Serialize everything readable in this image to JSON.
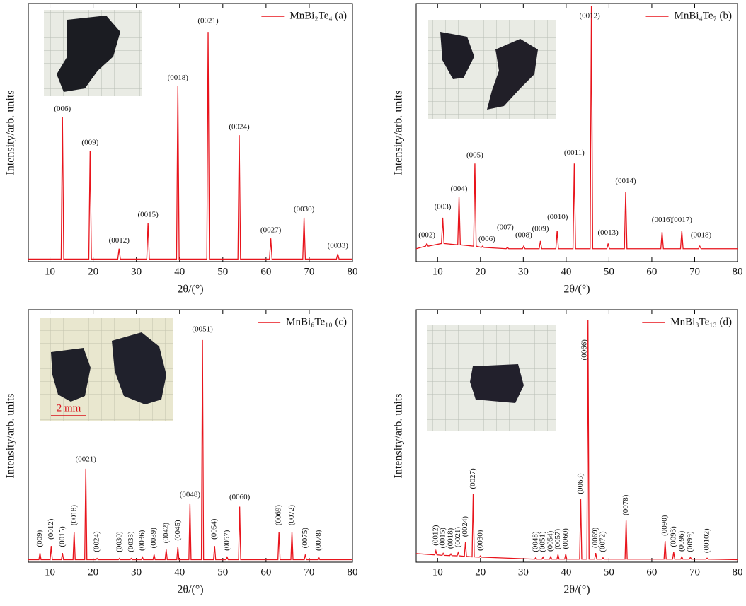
{
  "chart_data": [
    {
      "type": "line",
      "xlabel": "2θ/(°)",
      "ylabel": "Intensity/arb. units",
      "xlim": [
        5,
        80
      ],
      "xticks": [
        10,
        20,
        30,
        40,
        50,
        60,
        70,
        80
      ],
      "ylim": [
        0,
        100
      ],
      "legend": "upper right",
      "x": [
        5,
        12.6,
        12.9,
        13.2,
        19.0,
        19.3,
        19.6,
        25.7,
        26.0,
        26.3,
        32.4,
        32.7,
        33.0,
        39.3,
        39.6,
        39.9,
        46.3,
        46.6,
        46.9,
        53.5,
        53.8,
        54.1,
        60.8,
        61.1,
        61.4,
        68.5,
        68.8,
        69.1,
        76.3,
        76.6,
        76.9,
        80
      ],
      "series": [
        {
          "name": "MnBi₂Te₄ (a)",
          "color": "#e8141c",
          "values": [
            1,
            1,
            56,
            1,
            1,
            43,
            1,
            1,
            5,
            1,
            1,
            15,
            1,
            1,
            68,
            1,
            1,
            89,
            1,
            1,
            49,
            1,
            1,
            9,
            1,
            1,
            17,
            1,
            1,
            3,
            1,
            1
          ]
        }
      ],
      "annotations": [
        {
          "text": "(006)",
          "x": 12.9,
          "y": 58
        },
        {
          "text": "(009)",
          "x": 19.3,
          "y": 45
        },
        {
          "text": "(0012)",
          "x": 26.0,
          "y": 7
        },
        {
          "text": "(0015)",
          "x": 32.7,
          "y": 17
        },
        {
          "text": "(0018)",
          "x": 39.6,
          "y": 70
        },
        {
          "text": "(0021)",
          "x": 46.6,
          "y": 92
        },
        {
          "text": "(0024)",
          "x": 53.8,
          "y": 51
        },
        {
          "text": "(0027)",
          "x": 61.1,
          "y": 11
        },
        {
          "text": "(0030)",
          "x": 68.8,
          "y": 19
        },
        {
          "text": "(0033)",
          "x": 76.6,
          "y": 5
        }
      ]
    },
    {
      "type": "line",
      "xlabel": "2θ/(°)",
      "ylabel": "Intensity/arb. units",
      "xlim": [
        5,
        80
      ],
      "xticks": [
        10,
        20,
        30,
        40,
        50,
        60,
        70,
        80
      ],
      "ylim": [
        0,
        100
      ],
      "legend": "upper right",
      "x": [
        5,
        7.2,
        7.5,
        7.8,
        10.9,
        11.2,
        11.5,
        14.7,
        15.0,
        15.3,
        18.4,
        18.7,
        19.0,
        20.2,
        20.5,
        20.8,
        26.0,
        26.3,
        26.6,
        29.8,
        30.1,
        30.4,
        33.7,
        34.0,
        34.3,
        37.6,
        37.9,
        38.2,
        41.6,
        41.9,
        42.2,
        45.6,
        45.9,
        46.2,
        49.5,
        49.8,
        50.1,
        53.6,
        53.9,
        54.2,
        62.1,
        62.4,
        62.7,
        66.7,
        67.0,
        67.3,
        70.9,
        71.2,
        71.5,
        80
      ],
      "series": [
        {
          "name": "MnBi₄Te₇ (b)",
          "color": "#e8141c",
          "values": [
            5,
            6,
            7,
            6,
            7,
            17,
            7,
            6.5,
            25,
            6.5,
            6,
            38,
            6,
            5.5,
            6,
            5.5,
            5,
            5.5,
            5,
            5,
            6,
            5,
            5,
            8,
            5,
            5,
            12,
            5,
            5,
            38,
            5,
            5,
            99,
            5,
            5,
            7,
            5,
            5,
            27,
            5,
            5,
            11.5,
            5,
            5,
            12,
            5,
            5,
            6,
            5,
            5
          ]
        }
      ],
      "annotations": [
        {
          "text": "(002)",
          "x": 7.5,
          "y": 9
        },
        {
          "text": "(003)",
          "x": 11.2,
          "y": 20
        },
        {
          "text": "(004)",
          "x": 15.0,
          "y": 27
        },
        {
          "text": "(005)",
          "x": 18.7,
          "y": 40
        },
        {
          "text": "(006)",
          "x": 21.5,
          "y": 7.5
        },
        {
          "text": "(007)",
          "x": 25.8,
          "y": 12
        },
        {
          "text": "(008)",
          "x": 30.1,
          "y": 9
        },
        {
          "text": "(009)",
          "x": 34.0,
          "y": 11.5
        },
        {
          "text": "(0010)",
          "x": 38.0,
          "y": 16
        },
        {
          "text": "(0011)",
          "x": 41.9,
          "y": 41
        },
        {
          "text": "(0012)",
          "x": 45.5,
          "y": 94
        },
        {
          "text": "(0013)",
          "x": 49.8,
          "y": 10
        },
        {
          "text": "(0014)",
          "x": 53.9,
          "y": 30
        },
        {
          "text": "(0016)",
          "x": 62.4,
          "y": 15
        },
        {
          "text": "(0017)",
          "x": 67.0,
          "y": 15
        },
        {
          "text": "(0018)",
          "x": 71.5,
          "y": 9
        }
      ]
    },
    {
      "type": "line",
      "xlabel": "2θ/(°)",
      "ylabel": "Intensity/arb. units",
      "xlim": [
        5,
        80
      ],
      "xticks": [
        10,
        20,
        30,
        40,
        50,
        60,
        70,
        80
      ],
      "ylim": [
        0,
        100
      ],
      "legend": "upper right",
      "scale_bar_label": "2 mm",
      "x": [
        5,
        7.45,
        7.7,
        7.95,
        10.05,
        10.3,
        10.55,
        12.65,
        12.9,
        13.15,
        15.35,
        15.6,
        15.85,
        18.05,
        18.3,
        18.55,
        20.65,
        20.9,
        21.15,
        25.85,
        26.1,
        26.35,
        28.55,
        28.8,
        29.05,
        31.15,
        31.4,
        31.65,
        33.85,
        34.1,
        34.35,
        36.65,
        36.9,
        37.15,
        39.35,
        39.6,
        39.85,
        42.15,
        42.4,
        42.65,
        45.05,
        45.3,
        45.55,
        47.85,
        48.1,
        48.35,
        50.75,
        51.0,
        51.25,
        53.65,
        53.9,
        54.15,
        62.75,
        63.0,
        63.25,
        65.75,
        66.0,
        66.25,
        68.85,
        69.1,
        69.35,
        71.95,
        72.2,
        72.45,
        80
      ],
      "series": [
        {
          "name": "MnBi₆Te₁₀ (c)",
          "color": "#e8141c",
          "values": [
            1,
            1,
            3.6,
            1,
            1,
            6.4,
            1,
            1,
            3.6,
            1,
            1,
            12,
            1,
            1,
            37,
            1,
            1,
            1.5,
            1,
            1,
            1.5,
            1,
            1,
            1.5,
            1,
            1,
            2,
            1,
            1,
            3,
            1,
            1,
            5,
            1,
            1,
            6,
            1,
            1,
            23,
            1,
            1,
            88,
            1,
            1,
            6.4,
            1,
            1,
            2,
            1,
            1,
            22,
            1,
            1,
            12,
            1,
            1,
            12,
            1,
            1,
            3,
            1,
            1,
            2,
            1,
            1
          ]
        }
      ],
      "annotations": [
        {
          "text": "(009)",
          "x": 7.7,
          "y": 6,
          "rotated": true
        },
        {
          "text": "(0012)",
          "x": 10.3,
          "y": 9,
          "rotated": true
        },
        {
          "text": "(0015)",
          "x": 12.9,
          "y": 6,
          "rotated": true
        },
        {
          "text": "(0018)",
          "x": 15.6,
          "y": 14.5,
          "rotated": true
        },
        {
          "text": "(0021)",
          "x": 18.3,
          "y": 39.5
        },
        {
          "text": "(0024)",
          "x": 20.9,
          "y": 4,
          "rotated": true
        },
        {
          "text": "(0030)",
          "x": 26.1,
          "y": 4,
          "rotated": true
        },
        {
          "text": "(0033)",
          "x": 28.8,
          "y": 4,
          "rotated": true
        },
        {
          "text": "(0036)",
          "x": 31.4,
          "y": 4.5,
          "rotated": true
        },
        {
          "text": "(0039)",
          "x": 34.1,
          "y": 5.5,
          "rotated": true
        },
        {
          "text": "(0042)",
          "x": 36.9,
          "y": 7.5,
          "rotated": true
        },
        {
          "text": "(0045)",
          "x": 39.6,
          "y": 8.5,
          "rotated": true
        },
        {
          "text": "(0048)",
          "x": 42.4,
          "y": 25.5
        },
        {
          "text": "(0051)",
          "x": 45.3,
          "y": 91
        },
        {
          "text": "(0054)",
          "x": 48.1,
          "y": 9,
          "rotated": true
        },
        {
          "text": "(0057)",
          "x": 51.0,
          "y": 4.5,
          "rotated": true
        },
        {
          "text": "(0060)",
          "x": 53.9,
          "y": 24.5
        },
        {
          "text": "(0069)",
          "x": 63.0,
          "y": 14.5,
          "rotated": true
        },
        {
          "text": "(0072)",
          "x": 66.0,
          "y": 14.5,
          "rotated": true
        },
        {
          "text": "(0075)",
          "x": 69.1,
          "y": 5.5,
          "rotated": true
        },
        {
          "text": "(0078)",
          "x": 72.2,
          "y": 4.5,
          "rotated": true
        }
      ]
    },
    {
      "type": "line",
      "xlabel": "2θ/(°)",
      "ylabel": "Intensity/arb. units",
      "xlim": [
        5,
        80
      ],
      "xticks": [
        10,
        20,
        30,
        40,
        50,
        60,
        70,
        80
      ],
      "ylim": [
        0,
        100
      ],
      "legend": "upper right",
      "x": [
        5,
        9.35,
        9.6,
        9.85,
        11.05,
        11.3,
        11.55,
        12.85,
        13.1,
        13.35,
        14.55,
        14.8,
        15.05,
        16.25,
        16.5,
        16.75,
        18.05,
        18.3,
        18.55,
        19.75,
        20.0,
        20.25,
        32.65,
        32.9,
        33.15,
        34.35,
        34.6,
        34.85,
        36.15,
        36.4,
        36.65,
        37.85,
        38.1,
        38.35,
        39.65,
        39.9,
        40.15,
        43.15,
        43.4,
        43.65,
        44.85,
        45.1,
        45.35,
        46.65,
        46.9,
        47.15,
        48.35,
        48.6,
        48.85,
        53.75,
        54.0,
        54.25,
        62.85,
        63.1,
        63.35,
        64.85,
        65.1,
        65.35,
        66.75,
        67.0,
        67.25,
        68.75,
        69.0,
        69.25,
        72.65,
        72.9,
        73.15,
        80
      ],
      "series": [
        {
          "name": "MnBi₈Te₁₃ (d)",
          "color": "#e8141c",
          "values": [
            3.4,
            2.9,
            4.5,
            2.9,
            2.7,
            3.5,
            2.7,
            2.6,
            3.3,
            2.6,
            2.5,
            3.8,
            2.5,
            2.3,
            8,
            2.3,
            2.1,
            27,
            2.1,
            2,
            2.5,
            2,
            1.2,
            1.8,
            1.2,
            1.2,
            2,
            1.2,
            1.2,
            2.2,
            1.2,
            1.2,
            3,
            1.2,
            1.2,
            3.2,
            1.2,
            1.2,
            25,
            1.2,
            1.2,
            96,
            1.2,
            1.2,
            3.6,
            1.2,
            1.2,
            1.8,
            1.2,
            1.2,
            16.5,
            1.2,
            1.2,
            8.4,
            1.2,
            1.2,
            4,
            1.2,
            1.2,
            2.2,
            1.2,
            1.2,
            1.9,
            1.2,
            1.2,
            1.6,
            1.2,
            1
          ]
        }
      ],
      "annotations": [
        {
          "text": "(0012)",
          "x": 9.6,
          "y": 6.5,
          "rotated": true
        },
        {
          "text": "(0015)",
          "x": 11.3,
          "y": 5.5,
          "rotated": true
        },
        {
          "text": "(0018)",
          "x": 13.1,
          "y": 5.3,
          "rotated": true
        },
        {
          "text": "(0021)",
          "x": 14.8,
          "y": 5.8,
          "rotated": true
        },
        {
          "text": "(0024)",
          "x": 16.5,
          "y": 10,
          "rotated": true
        },
        {
          "text": "(0027)",
          "x": 18.3,
          "y": 29,
          "rotated": true
        },
        {
          "text": "(0030)",
          "x": 20.0,
          "y": 4.5,
          "rotated": true
        },
        {
          "text": "(0048)",
          "x": 32.9,
          "y": 4,
          "rotated": true
        },
        {
          "text": "(0051)",
          "x": 34.6,
          "y": 4,
          "rotated": true
        },
        {
          "text": "(0054)",
          "x": 36.4,
          "y": 4.2,
          "rotated": true
        },
        {
          "text": "(0057)",
          "x": 38.1,
          "y": 5,
          "rotated": true
        },
        {
          "text": "(0060)",
          "x": 39.9,
          "y": 5.2,
          "rotated": true
        },
        {
          "text": "(0063)",
          "x": 43.4,
          "y": 27,
          "rotated": true
        },
        {
          "text": "(0066)",
          "x": 44.3,
          "y": 80,
          "rotated": true
        },
        {
          "text": "(0069)",
          "x": 46.9,
          "y": 5.6,
          "rotated": true
        },
        {
          "text": "(0072)",
          "x": 48.6,
          "y": 4,
          "rotated": true
        },
        {
          "text": "(0078)",
          "x": 54.0,
          "y": 18.5,
          "rotated": true
        },
        {
          "text": "(0090)",
          "x": 63.1,
          "y": 10.4,
          "rotated": true
        },
        {
          "text": "(0093)",
          "x": 65.1,
          "y": 6,
          "rotated": true
        },
        {
          "text": "(0096)",
          "x": 67.0,
          "y": 4.2,
          "rotated": true
        },
        {
          "text": "(0099)",
          "x": 69.0,
          "y": 4,
          "rotated": true
        },
        {
          "text": "(00102)",
          "x": 72.9,
          "y": 3.6,
          "rotated": true
        }
      ]
    }
  ]
}
